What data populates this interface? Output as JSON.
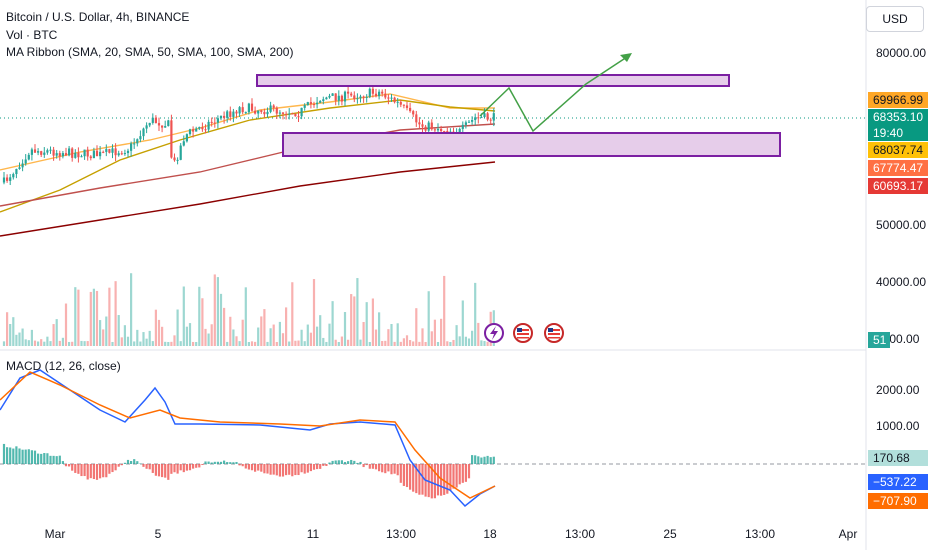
{
  "header": {
    "title": "Bitcoin / U.S. Dollar, 4h, BINANCE",
    "volume_label": "Vol · BTC",
    "ma_label": "MA Ribbon (SMA, 20, SMA, 50, SMA, 100, SMA, 200)",
    "macd_label": "MACD (12, 26, close)"
  },
  "currency_button": "USD",
  "colors": {
    "up": "#26a69a",
    "down": "#ef5350",
    "grid_dashed": "#9598a1",
    "sma20": "#ffb74d",
    "sma50": "#c6a000",
    "sma100": "#c0504d",
    "sma200": "#8b0000",
    "zone_border": "#7b1fa2",
    "zone_fill": "#e6cdea",
    "projection": "#43a047",
    "macd_line": "#2962ff",
    "signal_line": "#ff6d00"
  },
  "price_axis": {
    "ticks": [
      "80000.00",
      "50000.00",
      "40000.00",
      "3000.00"
    ],
    "badges": [
      {
        "label": "69966.99",
        "bg": "#ffa726",
        "fg": "#131722"
      },
      {
        "label": "68353.10",
        "bg": "#089981",
        "fg": "#ffffff"
      },
      {
        "label": "19:40",
        "bg": "#089981",
        "fg": "#ffffff"
      },
      {
        "label": "68037.74",
        "bg": "#ffc107",
        "fg": "#131722"
      },
      {
        "label": "67774.47",
        "bg": "#ff7043",
        "fg": "#ffffff"
      },
      {
        "label": "60693.17",
        "bg": "#e53935",
        "fg": "#ffffff"
      }
    ],
    "volume_badge": "51"
  },
  "macd_axis": {
    "ticks": [
      "2000.00",
      "1000.00"
    ],
    "badges": [
      {
        "label": "170.68",
        "bg": "#b2dfdb",
        "fg": "#131722"
      },
      {
        "label": "−537.22",
        "bg": "#2962ff",
        "fg": "#ffffff"
      },
      {
        "label": "−707.90",
        "bg": "#ff6d00",
        "fg": "#ffffff"
      }
    ]
  },
  "time_axis": [
    "Mar",
    "5",
    "11",
    "13:00",
    "18",
    "13:00",
    "25",
    "13:00",
    "Apr"
  ],
  "event_icons": [
    "lightning-event-icon",
    "us-flag-event-icon",
    "us-flag-event-icon"
  ],
  "chart_data": {
    "type": "candlestick",
    "price_range": [
      50000,
      80000
    ],
    "resistance_zone": [
      72800,
      74500
    ],
    "support_zone": [
      63800,
      66500
    ],
    "projection_path": [
      68500,
      72400,
      66200,
      74200,
      79600
    ],
    "ma_last": {
      "sma20": 69966.99,
      "sma50": 68037.74,
      "sma100": 67774.47,
      "sma200": 60693.17
    },
    "last_price": 68353.1,
    "macd_range": [
      -1000,
      3000
    ],
    "macd_last": {
      "histogram": 170.68,
      "macd": -537.22,
      "signal": -707.9
    }
  }
}
